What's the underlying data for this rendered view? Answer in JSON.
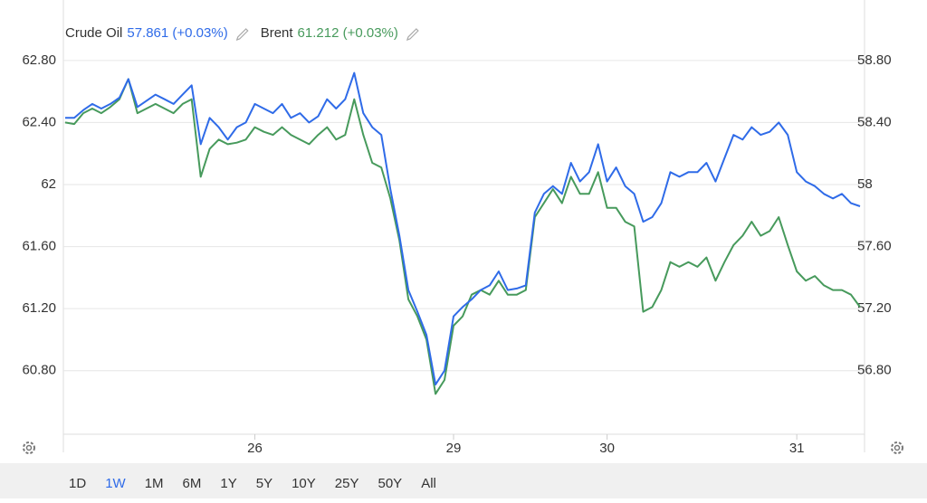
{
  "chart_data": {
    "type": "line",
    "categories": [
      null,
      null,
      null,
      null,
      null,
      null,
      null,
      null,
      null,
      null,
      null,
      null,
      null,
      null,
      null,
      null,
      null,
      null,
      null,
      null,
      null,
      "26",
      null,
      null,
      null,
      null,
      null,
      null,
      null,
      null,
      null,
      null,
      null,
      null,
      null,
      null,
      null,
      null,
      null,
      null,
      null,
      null,
      null,
      "29",
      null,
      null,
      null,
      null,
      null,
      null,
      null,
      null,
      null,
      null,
      null,
      null,
      null,
      null,
      null,
      null,
      "30",
      null,
      null,
      null,
      null,
      null,
      null,
      null,
      null,
      null,
      null,
      null,
      null,
      null,
      null,
      null,
      null,
      null,
      null,
      null,
      null,
      "31",
      null,
      null,
      null,
      null,
      null,
      null,
      null
    ],
    "series": [
      {
        "name": "Crude Oil",
        "legend_value": "57.861 (+0.03%)",
        "color": "#2f6be8",
        "axis": "y2",
        "values": [
          58.43,
          58.43,
          58.48,
          58.52,
          58.49,
          58.52,
          58.56,
          58.68,
          58.5,
          58.54,
          58.58,
          58.55,
          58.52,
          58.58,
          58.64,
          58.26,
          58.43,
          58.37,
          58.29,
          58.37,
          58.4,
          58.52,
          58.49,
          58.46,
          58.52,
          58.43,
          58.46,
          58.4,
          58.44,
          58.55,
          58.49,
          58.55,
          58.72,
          58.46,
          58.37,
          58.32,
          57.97,
          57.67,
          57.32,
          57.18,
          57.03,
          56.71,
          56.8,
          57.15,
          57.21,
          57.26,
          57.32,
          57.35,
          57.44,
          57.32,
          57.33,
          57.35,
          57.82,
          57.94,
          57.99,
          57.94,
          58.14,
          58.02,
          58.08,
          58.26,
          58.02,
          58.11,
          57.99,
          57.94,
          57.76,
          57.79,
          57.88,
          58.08,
          58.05,
          58.08,
          58.08,
          58.14,
          58.02,
          58.17,
          58.32,
          58.29,
          58.37,
          58.32,
          58.34,
          58.4,
          58.32,
          58.08,
          58.02,
          57.99,
          57.94,
          57.91,
          57.94,
          57.88,
          57.86
        ]
      },
      {
        "name": "Brent",
        "legend_value": "61.212 (+0.03%)",
        "color": "#479a5c",
        "axis": "y",
        "values": [
          62.4,
          62.39,
          62.46,
          62.49,
          62.46,
          62.5,
          62.55,
          62.68,
          62.46,
          62.49,
          62.52,
          62.49,
          62.46,
          62.52,
          62.55,
          62.05,
          62.23,
          62.29,
          62.26,
          62.27,
          62.29,
          62.37,
          62.34,
          62.32,
          62.37,
          62.32,
          62.29,
          62.26,
          62.32,
          62.37,
          62.29,
          62.32,
          62.55,
          62.32,
          62.14,
          62.11,
          61.91,
          61.64,
          61.26,
          61.15,
          61.0,
          60.65,
          60.74,
          61.09,
          61.15,
          61.29,
          61.32,
          61.29,
          61.38,
          61.29,
          61.29,
          61.32,
          61.79,
          61.88,
          61.97,
          61.88,
          62.05,
          61.94,
          61.94,
          62.08,
          61.85,
          61.85,
          61.76,
          61.73,
          61.18,
          61.21,
          61.32,
          61.5,
          61.47,
          61.5,
          61.47,
          61.53,
          61.38,
          61.5,
          61.61,
          61.67,
          61.76,
          61.67,
          61.7,
          61.79,
          61.61,
          61.44,
          61.38,
          61.41,
          61.35,
          61.32,
          61.32,
          61.29,
          61.21
        ]
      }
    ],
    "ylim": [
      60.39,
      63.19
    ],
    "yticks": [
      {
        "value": 60.8,
        "label": "60.80"
      },
      {
        "value": 61.2,
        "label": "61.20"
      },
      {
        "value": 61.6,
        "label": "61.60"
      },
      62,
      {
        "value": 62.4,
        "label": "62.40"
      },
      {
        "value": 62.8,
        "label": "62.80"
      }
    ],
    "y2lim": [
      56.39,
      59.19
    ],
    "y2ticks": [
      {
        "value": 56.8,
        "label": "56.80"
      },
      {
        "value": 57.2,
        "label": "57.20"
      },
      {
        "value": 57.6,
        "label": "57.60"
      },
      58,
      {
        "value": 58.4,
        "label": "58.40"
      },
      {
        "value": 58.8,
        "label": "58.80"
      }
    ],
    "grid": true
  },
  "toolbar": {
    "ranges": [
      "1D",
      "1W",
      "1M",
      "6M",
      "1Y",
      "5Y",
      "10Y",
      "25Y",
      "50Y",
      "All"
    ],
    "selected": 1
  }
}
